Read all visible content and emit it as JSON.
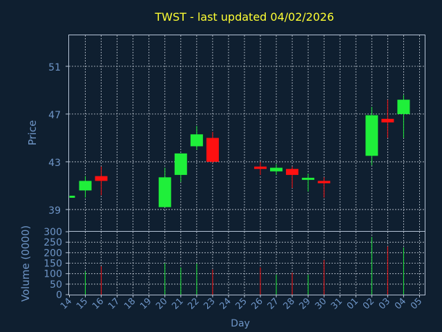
{
  "chart_data": {
    "type": "candlestick",
    "title": "TWST - last updated 04/02/2026",
    "xlabel": "Day",
    "price_panel": {
      "ylabel": "Price",
      "yticks": [
        39,
        43,
        47,
        51
      ],
      "ylim": [
        37.2,
        53.6
      ],
      "grid": true
    },
    "volume_panel": {
      "ylabel": "Volume (0000)",
      "yticks": [
        0,
        50,
        100,
        150,
        200,
        250,
        300
      ],
      "ylim": [
        0,
        300
      ],
      "grid": true
    },
    "x_ticks": [
      "14",
      "15",
      "16",
      "17",
      "18",
      "19",
      "20",
      "21",
      "22",
      "23",
      "24",
      "25",
      "26",
      "27",
      "28",
      "29",
      "30",
      "31",
      "01",
      "02",
      "03",
      "04",
      "05"
    ],
    "candles": [
      {
        "i": 0,
        "open": 40.1,
        "close": 40.1,
        "high": 40.1,
        "low": 40.1,
        "volume": 0
      },
      {
        "i": 1,
        "open": 40.6,
        "close": 41.4,
        "high": 41.8,
        "low": 40.0,
        "volume": 110
      },
      {
        "i": 2,
        "open": 41.8,
        "close": 41.4,
        "high": 42.6,
        "low": 40.2,
        "volume": 135
      },
      {
        "i": 6,
        "open": 39.2,
        "close": 41.7,
        "high": 42.5,
        "low": 39.2,
        "volume": 150
      },
      {
        "i": 7,
        "open": 41.9,
        "close": 43.7,
        "high": 43.7,
        "low": 41.3,
        "volume": 130
      },
      {
        "i": 8,
        "open": 44.3,
        "close": 45.3,
        "high": 46.0,
        "low": 44.0,
        "volume": 148
      },
      {
        "i": 9,
        "open": 45.0,
        "close": 43.0,
        "high": 45.5,
        "low": 42.9,
        "volume": 120
      },
      {
        "i": 12,
        "open": 42.6,
        "close": 42.4,
        "high": 43.0,
        "low": 41.9,
        "volume": 130
      },
      {
        "i": 13,
        "open": 42.2,
        "close": 42.5,
        "high": 42.8,
        "low": 41.9,
        "volume": 95
      },
      {
        "i": 14,
        "open": 42.4,
        "close": 41.9,
        "high": 42.6,
        "low": 40.8,
        "volume": 105
      },
      {
        "i": 15,
        "open": 41.6,
        "close": 41.6,
        "high": 42.0,
        "low": 40.5,
        "volume": 95
      },
      {
        "i": 16,
        "open": 41.4,
        "close": 41.2,
        "high": 41.7,
        "low": 40.0,
        "volume": 165
      },
      {
        "i": 19,
        "open": 43.5,
        "close": 46.9,
        "high": 47.6,
        "low": 42.7,
        "volume": 275
      },
      {
        "i": 20,
        "open": 46.6,
        "close": 46.3,
        "high": 48.2,
        "low": 45.0,
        "volume": 230
      },
      {
        "i": 21,
        "open": 47.0,
        "close": 48.2,
        "high": 48.6,
        "low": 45.0,
        "volume": 225
      }
    ],
    "colors": {
      "up": "#1fef3a",
      "down": "#ff1111",
      "background": "#0f1f30",
      "text": "#6f96c8",
      "title": "#ffff33"
    }
  }
}
